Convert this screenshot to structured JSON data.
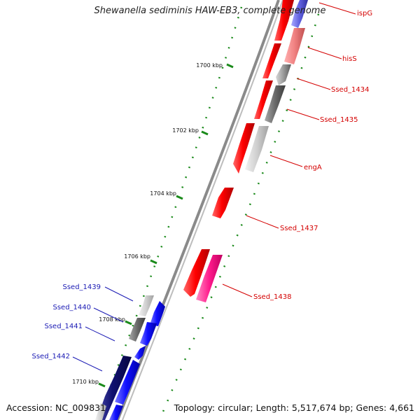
{
  "title": "Shewanella sediminis HAW-EB3, complete genome",
  "accession_label": "Accession: NC_009831",
  "summary_label": "Topology: circular; Length: 5,517,674 bp; Genes: 4,661",
  "colors": {
    "forward_strand": "#ff0000",
    "forward_strand_dark": "#c80000",
    "reverse_strand": "#1a1aff",
    "reverse_strand_dark": "#0a0a80",
    "gray_feature": "#8c8c8c",
    "pink_feature": "#ff2d8c",
    "backbone": "#8a8a8a",
    "tick_green": "#1a8a1a",
    "label_red": "#d40000",
    "label_blue": "#1a1ab4"
  },
  "ruler": {
    "ticks": [
      "1700 kbp",
      "1702 kbp",
      "1704 kbp",
      "1706 kbp",
      "1708 kbp",
      "1710 kbp"
    ]
  },
  "genes": [
    {
      "name": "ispG",
      "strand": "forward"
    },
    {
      "name": "hisS",
      "strand": "forward"
    },
    {
      "name": "Ssed_1434",
      "strand": "forward"
    },
    {
      "name": "Ssed_1435",
      "strand": "forward"
    },
    {
      "name": "engA",
      "strand": "forward"
    },
    {
      "name": "Ssed_1437",
      "strand": "forward"
    },
    {
      "name": "Ssed_1438",
      "strand": "forward"
    },
    {
      "name": "Ssed_1439",
      "strand": "reverse"
    },
    {
      "name": "Ssed_1440",
      "strand": "reverse"
    },
    {
      "name": "Ssed_1441",
      "strand": "reverse"
    },
    {
      "name": "Ssed_1442",
      "strand": "reverse"
    }
  ]
}
